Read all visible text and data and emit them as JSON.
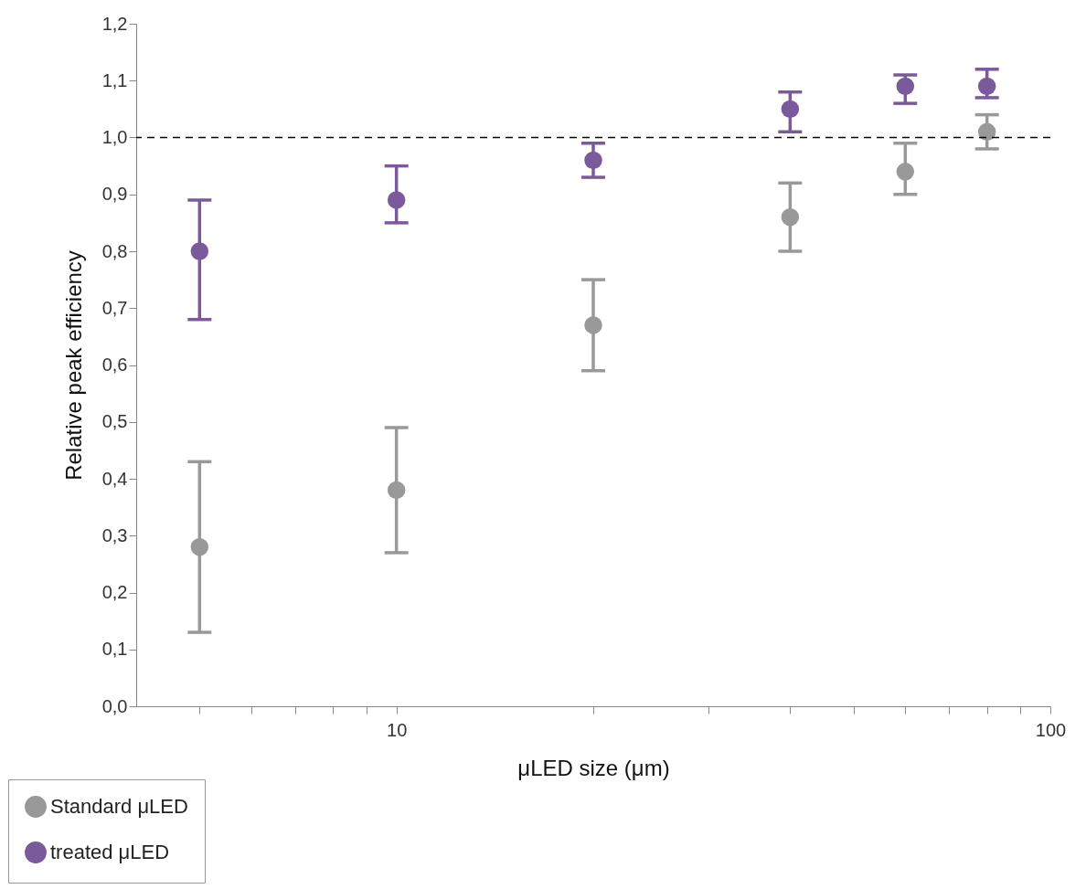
{
  "chart_data": {
    "type": "scatter",
    "xlabel": "μLED size (μm)",
    "ylabel": "Relative peak efficiency",
    "x": [
      5,
      10,
      20,
      40,
      60,
      80
    ],
    "series": [
      {
        "name": "Standard μLED",
        "color": "#999999",
        "values": [
          0.28,
          0.38,
          0.67,
          0.86,
          0.94,
          1.01
        ],
        "errors": [
          [
            0.13,
            0.43
          ],
          [
            0.27,
            0.49
          ],
          [
            0.59,
            0.75
          ],
          [
            0.8,
            0.92
          ],
          [
            0.9,
            0.99
          ],
          [
            0.98,
            1.04
          ]
        ]
      },
      {
        "name": "treated μLED",
        "color": "#7b5a9b",
        "values": [
          0.8,
          0.89,
          0.96,
          1.05,
          1.09,
          1.09
        ],
        "errors": [
          [
            0.68,
            0.89
          ],
          [
            0.85,
            0.95
          ],
          [
            0.93,
            0.99
          ],
          [
            1.01,
            1.08
          ],
          [
            1.06,
            1.11
          ],
          [
            1.07,
            1.12
          ]
        ]
      }
    ],
    "log": "x",
    "xlim": [
      4,
      100
    ],
    "xticks": [
      {
        "value": 5,
        "label": null
      },
      {
        "value": 6,
        "label": null
      },
      {
        "value": 7,
        "label": null
      },
      {
        "value": 8,
        "label": null
      },
      {
        "value": 9,
        "label": null
      },
      10,
      {
        "value": 20,
        "label": null
      },
      {
        "value": 30,
        "label": null
      },
      {
        "value": 40,
        "label": null
      },
      {
        "value": 50,
        "label": null
      },
      {
        "value": 60,
        "label": null
      },
      {
        "value": 70,
        "label": null
      },
      {
        "value": 80,
        "label": null
      },
      {
        "value": 90,
        "label": null
      },
      100
    ],
    "ylim": [
      0,
      1.2
    ],
    "yticks": [
      {
        "value": 0,
        "label": "0,0"
      },
      {
        "value": 0.1,
        "label": "0,1"
      },
      {
        "value": 0.2,
        "label": "0,2"
      },
      {
        "value": 0.3,
        "label": "0,3"
      },
      {
        "value": 0.4,
        "label": "0,4"
      },
      {
        "value": 0.5,
        "label": "0,5"
      },
      {
        "value": 0.6,
        "label": "0,6"
      },
      {
        "value": 0.7,
        "label": "0,7"
      },
      {
        "value": 0.8,
        "label": "0,8"
      },
      {
        "value": 0.9,
        "label": "0,9"
      },
      {
        "value": 1.0,
        "label": "1,0"
      },
      {
        "value": 1.1,
        "label": "1,1"
      },
      {
        "value": 1.2,
        "label": "1,2"
      }
    ],
    "ref_lines": [
      {
        "axis": "y",
        "value": 1.0,
        "label": null,
        "color": "#000000",
        "line_style": "dashed"
      }
    ],
    "grid": false,
    "legend": "bottom left",
    "marker": "circle"
  }
}
